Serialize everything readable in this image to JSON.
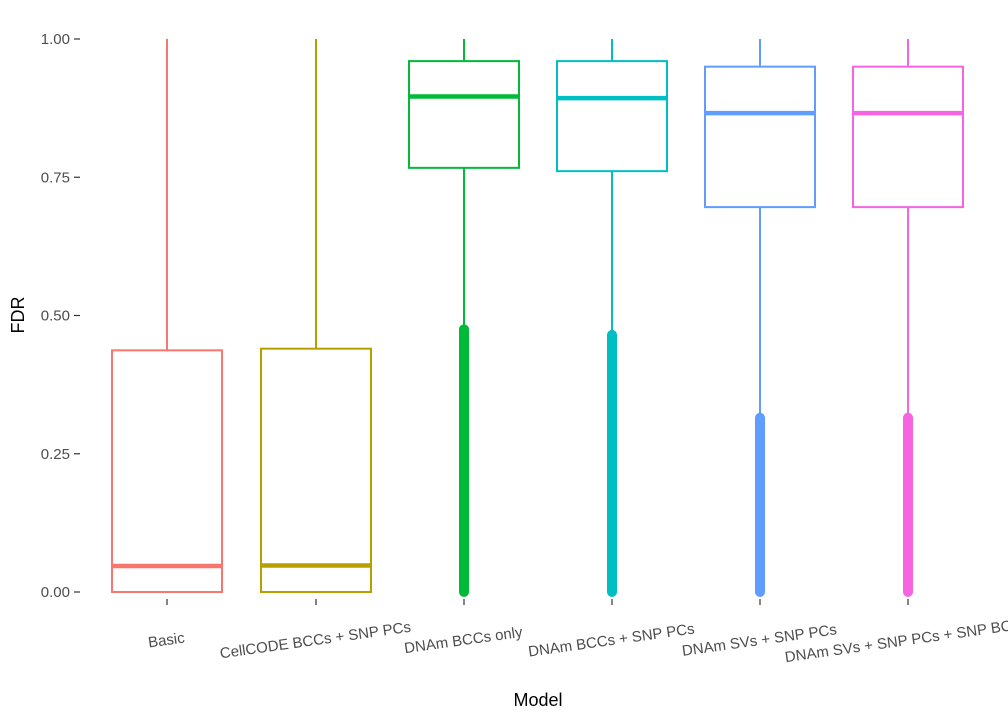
{
  "chart_data": {
    "type": "boxplot",
    "xlabel": "Model",
    "ylabel": "FDR",
    "ylim": [
      0,
      1
    ],
    "yticks": [
      0,
      0.25,
      0.5,
      0.75,
      1
    ],
    "ytick_labels": [
      "0.00",
      "0.25",
      "0.50",
      "0.75",
      "1.00"
    ],
    "grid": false,
    "legend": "none",
    "series": [
      {
        "category": "Basic",
        "color": "#F8766D",
        "whisker_low": 0.0,
        "q1": 0.0,
        "median": 0.047,
        "q3": 0.437,
        "whisker_high": 1.0,
        "outliers_from": null,
        "outliers_to": null
      },
      {
        "category": "CellCODE BCCs + SNP PCs",
        "color": "#B79F00",
        "whisker_low": 0.0,
        "q1": 0.0,
        "median": 0.048,
        "q3": 0.44,
        "whisker_high": 1.0,
        "outliers_from": null,
        "outliers_to": null
      },
      {
        "category": "DNAm BCCs only",
        "color": "#00BA38",
        "whisker_low": 0.48,
        "q1": 0.767,
        "median": 0.896,
        "q3": 0.96,
        "whisker_high": 1.0,
        "outliers_from": 0.0,
        "outliers_to": 0.475
      },
      {
        "category": "DNAm BCCs + SNP PCs",
        "color": "#00BFC4",
        "whisker_low": 0.47,
        "q1": 0.761,
        "median": 0.893,
        "q3": 0.96,
        "whisker_high": 1.0,
        "outliers_from": 0.0,
        "outliers_to": 0.465
      },
      {
        "category": "DNAm SVs + SNP PCs",
        "color": "#619CFF",
        "whisker_low": 0.32,
        "q1": 0.696,
        "median": 0.866,
        "q3": 0.95,
        "whisker_high": 1.0,
        "outliers_from": 0.0,
        "outliers_to": 0.315
      },
      {
        "category": "DNAm SVs + SNP PCs + SNP BCCs",
        "color": "#F564E3",
        "whisker_low": 0.32,
        "q1": 0.696,
        "median": 0.866,
        "q3": 0.95,
        "whisker_high": 1.0,
        "outliers_from": 0.0,
        "outliers_to": 0.315
      }
    ]
  }
}
